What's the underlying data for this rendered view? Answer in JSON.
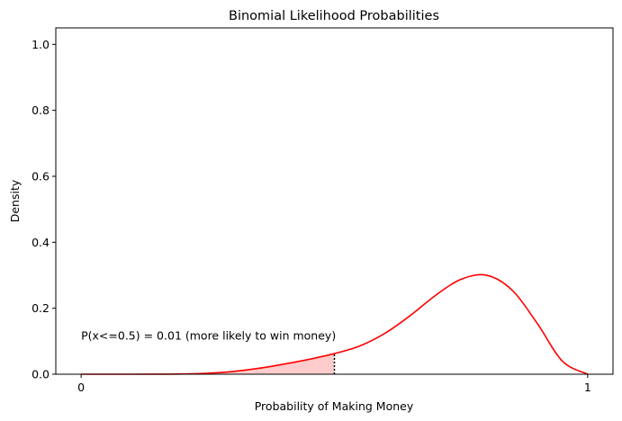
{
  "chart_data": {
    "type": "line",
    "title": "Binomial Likelihood Probabilities",
    "xlabel": "Probability of Making Money",
    "ylabel": "Density",
    "xlim": [
      -0.05,
      1.05
    ],
    "ylim": [
      0.0,
      1.05
    ],
    "xticks": [
      {
        "value": 0,
        "label": "0"
      },
      {
        "value": 1,
        "label": "1"
      }
    ],
    "yticks": [
      {
        "value": 0.0,
        "label": "0.0"
      },
      {
        "value": 0.2,
        "label": "0.2"
      },
      {
        "value": 0.4,
        "label": "0.4"
      },
      {
        "value": 0.6,
        "label": "0.6"
      },
      {
        "value": 0.8,
        "label": "0.8"
      },
      {
        "value": 1.0,
        "label": "1.0"
      }
    ],
    "grid": false,
    "series": [
      {
        "color": "#ff0000",
        "x": [
          0.0,
          0.05,
          0.1,
          0.15,
          0.2,
          0.25,
          0.3,
          0.35,
          0.4,
          0.45,
          0.5,
          0.55,
          0.6,
          0.65,
          0.7,
          0.75,
          0.8,
          0.85,
          0.9,
          0.95,
          1.0
        ],
        "y": [
          0.0,
          0.0,
          0.0,
          0.0001,
          0.0008,
          0.0031,
          0.0084,
          0.0178,
          0.0306,
          0.0452,
          0.0625,
          0.0855,
          0.1242,
          0.1781,
          0.2394,
          0.2876,
          0.3002,
          0.2561,
          0.1552,
          0.0397,
          0.0
        ]
      }
    ],
    "shaded_region": {
      "x_max": 0.5,
      "color": "#ffcccc"
    },
    "vline": {
      "x": 0.5,
      "style": "dotted",
      "color": "#000000"
    },
    "annotation": {
      "text": "P(x<=0.5) = 0.01 (more likely to win money)",
      "x": 0.0,
      "y": 0.1
    }
  }
}
